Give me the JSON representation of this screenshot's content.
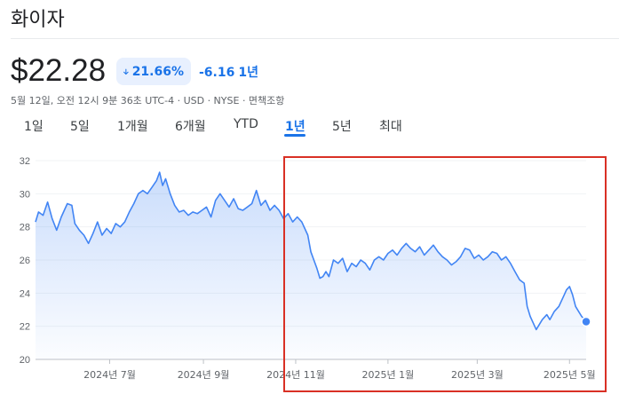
{
  "header": {
    "title": "화이자",
    "price": "$22.28",
    "change_pct": "21.66%",
    "change_abs": "-6.16",
    "change_period": "1년",
    "meta": "5월 12일, 오전 12시 9분 36초 UTC-4 · USD · NYSE · 면책조항",
    "accent_color": "#1a73e8",
    "down_icon": "arrow-down-icon"
  },
  "tabs": [
    {
      "label": "1일"
    },
    {
      "label": "5일"
    },
    {
      "label": "1개월"
    },
    {
      "label": "6개월"
    },
    {
      "label": "YTD"
    },
    {
      "label": "1년",
      "active": true
    },
    {
      "label": "5년"
    },
    {
      "label": "최대"
    }
  ],
  "chart_data": {
    "type": "area",
    "ylim": [
      20,
      32
    ],
    "yticks": [
      20,
      22,
      24,
      26,
      28,
      30,
      32
    ],
    "xticks": [
      "2024년 7월",
      "2024년 9월",
      "2024년 11월",
      "2025년 1월",
      "2025년 3월",
      "2025년 5월"
    ],
    "x_range": [
      "2024-05-13",
      "2025-05-12"
    ],
    "xtick_dates": [
      "2024-07-01",
      "2024-09-01",
      "2024-11-01",
      "2025-01-01",
      "2025-03-01",
      "2025-05-01"
    ],
    "series": [
      {
        "color": "#4285f4",
        "points": [
          [
            "2024-05-13",
            28.3
          ],
          [
            "2024-05-15",
            28.9
          ],
          [
            "2024-05-18",
            28.7
          ],
          [
            "2024-05-21",
            29.5
          ],
          [
            "2024-05-24",
            28.5
          ],
          [
            "2024-05-27",
            27.8
          ],
          [
            "2024-05-30",
            28.6
          ],
          [
            "2024-06-03",
            29.4
          ],
          [
            "2024-06-06",
            29.3
          ],
          [
            "2024-06-08",
            28.2
          ],
          [
            "2024-06-11",
            27.8
          ],
          [
            "2024-06-14",
            27.5
          ],
          [
            "2024-06-17",
            27.0
          ],
          [
            "2024-06-20",
            27.6
          ],
          [
            "2024-06-23",
            28.3
          ],
          [
            "2024-06-26",
            27.5
          ],
          [
            "2024-06-29",
            27.9
          ],
          [
            "2024-07-02",
            27.6
          ],
          [
            "2024-07-05",
            28.2
          ],
          [
            "2024-07-08",
            28.0
          ],
          [
            "2024-07-11",
            28.3
          ],
          [
            "2024-07-14",
            28.9
          ],
          [
            "2024-07-17",
            29.4
          ],
          [
            "2024-07-20",
            30.0
          ],
          [
            "2024-07-23",
            30.2
          ],
          [
            "2024-07-26",
            30.0
          ],
          [
            "2024-07-29",
            30.4
          ],
          [
            "2024-08-01",
            30.8
          ],
          [
            "2024-08-03",
            31.3
          ],
          [
            "2024-08-05",
            30.5
          ],
          [
            "2024-08-07",
            30.9
          ],
          [
            "2024-08-10",
            30.0
          ],
          [
            "2024-08-13",
            29.3
          ],
          [
            "2024-08-16",
            28.9
          ],
          [
            "2024-08-19",
            29.0
          ],
          [
            "2024-08-22",
            28.7
          ],
          [
            "2024-08-25",
            28.9
          ],
          [
            "2024-08-28",
            28.8
          ],
          [
            "2024-08-31",
            29.0
          ],
          [
            "2024-09-03",
            29.2
          ],
          [
            "2024-09-06",
            28.6
          ],
          [
            "2024-09-09",
            29.6
          ],
          [
            "2024-09-12",
            30.0
          ],
          [
            "2024-09-15",
            29.6
          ],
          [
            "2024-09-18",
            29.2
          ],
          [
            "2024-09-21",
            29.7
          ],
          [
            "2024-09-24",
            29.1
          ],
          [
            "2024-09-27",
            29.0
          ],
          [
            "2024-09-30",
            29.2
          ],
          [
            "2024-10-03",
            29.4
          ],
          [
            "2024-10-06",
            30.2
          ],
          [
            "2024-10-09",
            29.3
          ],
          [
            "2024-10-12",
            29.6
          ],
          [
            "2024-10-15",
            29.0
          ],
          [
            "2024-10-18",
            29.3
          ],
          [
            "2024-10-21",
            29.0
          ],
          [
            "2024-10-24",
            28.5
          ],
          [
            "2024-10-27",
            28.8
          ],
          [
            "2024-10-30",
            28.3
          ],
          [
            "2024-11-02",
            28.6
          ],
          [
            "2024-11-05",
            28.3
          ],
          [
            "2024-11-07",
            27.9
          ],
          [
            "2024-11-09",
            27.5
          ],
          [
            "2024-11-11",
            26.5
          ],
          [
            "2024-11-13",
            26.0
          ],
          [
            "2024-11-15",
            25.5
          ],
          [
            "2024-11-17",
            24.9
          ],
          [
            "2024-11-19",
            25.0
          ],
          [
            "2024-11-21",
            25.3
          ],
          [
            "2024-11-23",
            25.0
          ],
          [
            "2024-11-26",
            26.0
          ],
          [
            "2024-11-29",
            25.8
          ],
          [
            "2024-12-02",
            26.1
          ],
          [
            "2024-12-05",
            25.3
          ],
          [
            "2024-12-08",
            25.8
          ],
          [
            "2024-12-11",
            25.6
          ],
          [
            "2024-12-14",
            26.0
          ],
          [
            "2024-12-17",
            25.8
          ],
          [
            "2024-12-20",
            25.4
          ],
          [
            "2024-12-23",
            26.0
          ],
          [
            "2024-12-26",
            26.2
          ],
          [
            "2024-12-29",
            26.0
          ],
          [
            "2025-01-01",
            26.4
          ],
          [
            "2025-01-04",
            26.6
          ],
          [
            "2025-01-07",
            26.3
          ],
          [
            "2025-01-10",
            26.7
          ],
          [
            "2025-01-13",
            27.0
          ],
          [
            "2025-01-16",
            26.7
          ],
          [
            "2025-01-19",
            26.5
          ],
          [
            "2025-01-22",
            26.8
          ],
          [
            "2025-01-25",
            26.3
          ],
          [
            "2025-01-28",
            26.6
          ],
          [
            "2025-01-31",
            26.9
          ],
          [
            "2025-02-03",
            26.5
          ],
          [
            "2025-02-06",
            26.2
          ],
          [
            "2025-02-09",
            26.0
          ],
          [
            "2025-02-12",
            25.7
          ],
          [
            "2025-02-15",
            25.9
          ],
          [
            "2025-02-18",
            26.2
          ],
          [
            "2025-02-21",
            26.7
          ],
          [
            "2025-02-24",
            26.6
          ],
          [
            "2025-02-27",
            26.1
          ],
          [
            "2025-03-02",
            26.3
          ],
          [
            "2025-03-05",
            26.0
          ],
          [
            "2025-03-08",
            26.2
          ],
          [
            "2025-03-11",
            26.5
          ],
          [
            "2025-03-14",
            26.4
          ],
          [
            "2025-03-17",
            26.0
          ],
          [
            "2025-03-20",
            26.2
          ],
          [
            "2025-03-23",
            25.8
          ],
          [
            "2025-03-26",
            25.3
          ],
          [
            "2025-03-29",
            24.8
          ],
          [
            "2025-04-01",
            24.6
          ],
          [
            "2025-04-03",
            23.2
          ],
          [
            "2025-04-05",
            22.6
          ],
          [
            "2025-04-07",
            22.2
          ],
          [
            "2025-04-09",
            21.8
          ],
          [
            "2025-04-11",
            22.1
          ],
          [
            "2025-04-13",
            22.4
          ],
          [
            "2025-04-16",
            22.7
          ],
          [
            "2025-04-18",
            22.4
          ],
          [
            "2025-04-21",
            22.9
          ],
          [
            "2025-04-24",
            23.2
          ],
          [
            "2025-04-27",
            23.8
          ],
          [
            "2025-04-29",
            24.2
          ],
          [
            "2025-05-01",
            24.4
          ],
          [
            "2025-05-03",
            23.9
          ],
          [
            "2025-05-05",
            23.2
          ],
          [
            "2025-05-07",
            22.9
          ],
          [
            "2025-05-09",
            22.6
          ],
          [
            "2025-05-12",
            22.28
          ]
        ]
      }
    ]
  }
}
